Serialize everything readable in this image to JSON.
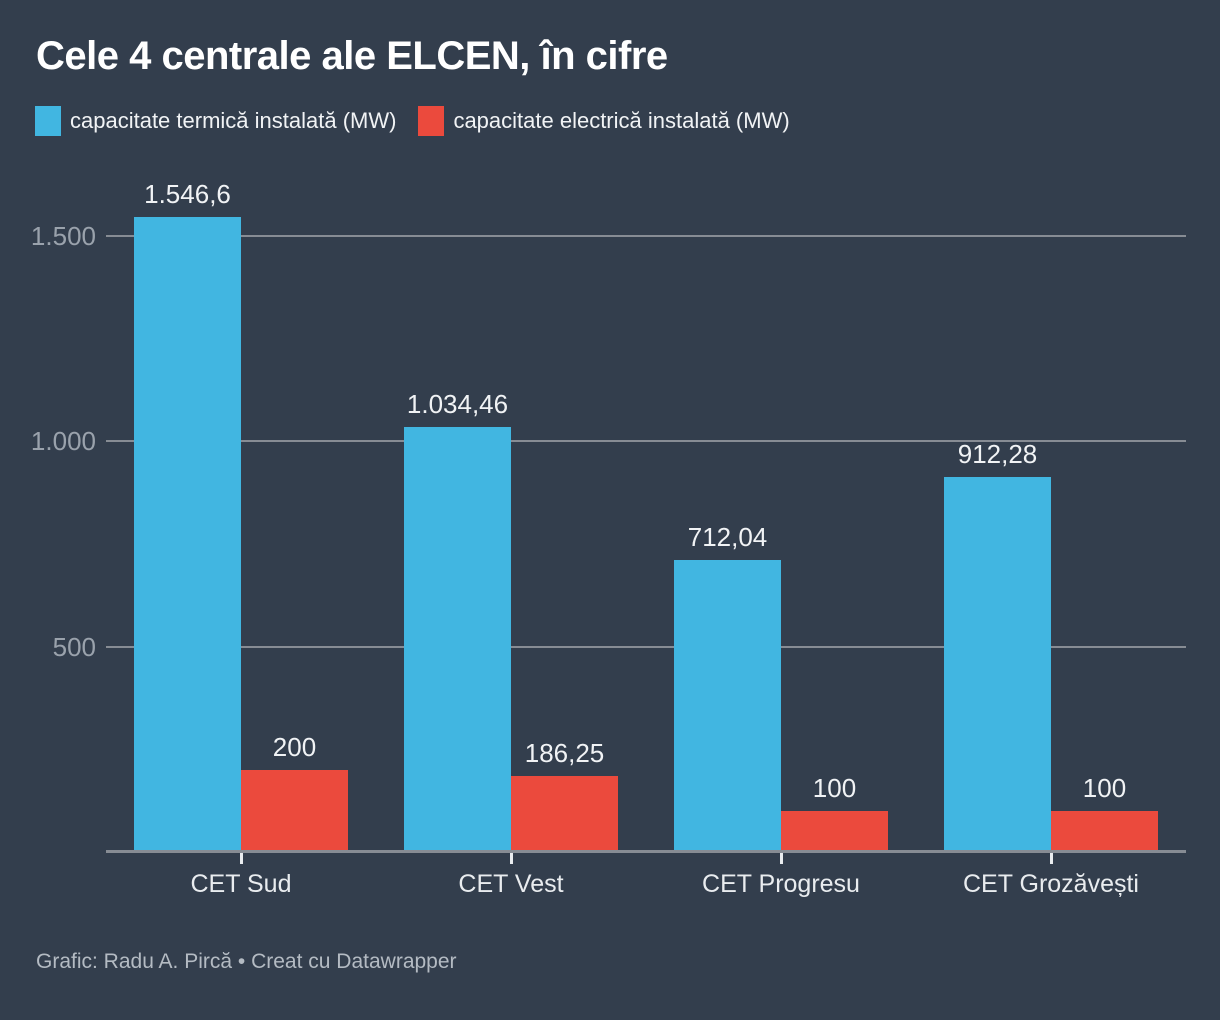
{
  "title": "Cele 4 centrale ale ELCEN, în cifre",
  "legend": [
    {
      "label": "capacitate termică instalată (MW)",
      "color": "#41B6E1"
    },
    {
      "label": "capacitate electrică instalată (MW)",
      "color": "#EB4A3D"
    }
  ],
  "footer": "Grafic: Radu A. Pircă • Creat cu Datawrapper",
  "chart_data": {
    "type": "bar",
    "categories": [
      "CET Sud",
      "CET Vest",
      "CET Progresu",
      "CET Grozăvești"
    ],
    "series": [
      {
        "name": "capacitate termică instalată (MW)",
        "color": "#41B6E1",
        "values": [
          1546.6,
          1034.46,
          712.04,
          912.28
        ],
        "labels": [
          "1.546,6",
          "1.034,46",
          "712,04",
          "912,28"
        ]
      },
      {
        "name": "capacitate electrică instalată (MW)",
        "color": "#EB4A3D",
        "values": [
          200,
          186.25,
          100,
          100
        ],
        "labels": [
          "200",
          "186,25",
          "100",
          "100"
        ]
      }
    ],
    "ylabel": "",
    "xlabel": "",
    "ylim": [
      0,
      1650
    ],
    "yticks": [
      {
        "value": 500,
        "label": "500"
      },
      {
        "value": 1000,
        "label": "1.000"
      },
      {
        "value": 1500,
        "label": "1.500"
      }
    ],
    "grid": true,
    "legend_position": "top"
  },
  "colors": {
    "background": "#333E4D",
    "grid": "#878C94",
    "axis": "#878C94",
    "tick_label": "#9AA2AC",
    "value_label": "#F1F3F5",
    "category_label": "#E9ECEF",
    "axis_tick": "#E9ECEF",
    "title": "#FFFFFF",
    "footer_text": "#B4BBC3"
  }
}
